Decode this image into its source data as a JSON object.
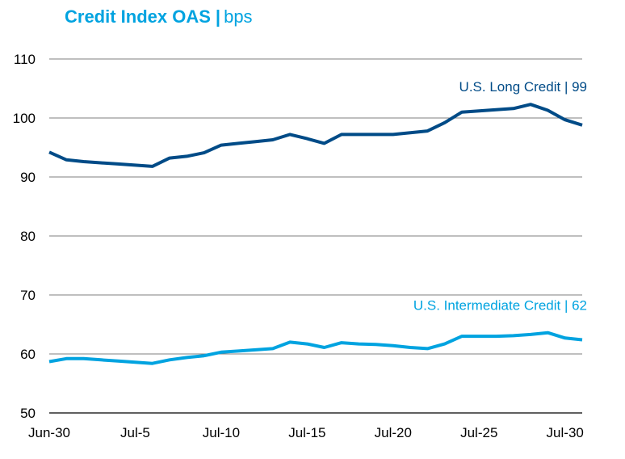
{
  "header": {
    "title": "Credit Index OAS",
    "separator": "|",
    "unit": "bps"
  },
  "chart_data": {
    "type": "line",
    "title": "Credit Index OAS | bps",
    "xlabel": "",
    "ylabel": "",
    "ylim": [
      50,
      110
    ],
    "yticks": [
      50,
      60,
      70,
      80,
      90,
      100,
      110
    ],
    "xlim": [
      0,
      31
    ],
    "xticks": [
      {
        "x": 0,
        "label": "Jun-30"
      },
      {
        "x": 5,
        "label": "Jul-5"
      },
      {
        "x": 10,
        "label": "Jul-10"
      },
      {
        "x": 15,
        "label": "Jul-15"
      },
      {
        "x": 20,
        "label": "Jul-20"
      },
      {
        "x": 25,
        "label": "Jul-25"
      },
      {
        "x": 30,
        "label": "Jul-30"
      }
    ],
    "grid": true,
    "series": [
      {
        "name": "U.S. Long Credit",
        "label": "U.S. Long Credit | 99",
        "color": "#004b87",
        "points": [
          [
            0,
            94.2
          ],
          [
            1,
            92.9
          ],
          [
            2,
            92.6
          ],
          [
            3,
            92.4
          ],
          [
            4,
            92.2
          ],
          [
            5,
            92.0
          ],
          [
            6,
            91.8
          ],
          [
            7,
            93.2
          ],
          [
            8,
            93.5
          ],
          [
            9,
            94.1
          ],
          [
            10,
            95.4
          ],
          [
            11,
            95.7
          ],
          [
            12,
            96.0
          ],
          [
            13,
            96.3
          ],
          [
            14,
            97.2
          ],
          [
            15,
            96.5
          ],
          [
            16,
            95.7
          ],
          [
            17,
            97.2
          ],
          [
            18,
            97.2
          ],
          [
            19,
            97.2
          ],
          [
            20,
            97.2
          ],
          [
            21,
            97.5
          ],
          [
            22,
            97.8
          ],
          [
            23,
            99.2
          ],
          [
            24,
            101.0
          ],
          [
            25,
            101.2
          ],
          [
            26,
            101.4
          ],
          [
            27,
            101.6
          ],
          [
            28,
            102.3
          ],
          [
            29,
            101.3
          ],
          [
            30,
            99.7
          ],
          [
            31,
            98.8
          ]
        ]
      },
      {
        "name": "U.S. Intermediate Credit",
        "label": "U.S. Intermediate Credit | 62",
        "color": "#00a3e0",
        "points": [
          [
            0,
            58.7
          ],
          [
            1,
            59.2
          ],
          [
            2,
            59.2
          ],
          [
            3,
            59.0
          ],
          [
            4,
            58.8
          ],
          [
            5,
            58.6
          ],
          [
            6,
            58.4
          ],
          [
            7,
            59.0
          ],
          [
            8,
            59.4
          ],
          [
            9,
            59.7
          ],
          [
            10,
            60.3
          ],
          [
            11,
            60.5
          ],
          [
            12,
            60.7
          ],
          [
            13,
            60.9
          ],
          [
            14,
            62.0
          ],
          [
            15,
            61.7
          ],
          [
            16,
            61.1
          ],
          [
            17,
            61.9
          ],
          [
            18,
            61.7
          ],
          [
            19,
            61.6
          ],
          [
            20,
            61.4
          ],
          [
            21,
            61.1
          ],
          [
            22,
            60.9
          ],
          [
            23,
            61.7
          ],
          [
            24,
            63.0
          ],
          [
            25,
            63.0
          ],
          [
            26,
            63.0
          ],
          [
            27,
            63.1
          ],
          [
            28,
            63.3
          ],
          [
            29,
            63.6
          ],
          [
            30,
            62.7
          ],
          [
            31,
            62.4
          ]
        ]
      }
    ]
  }
}
